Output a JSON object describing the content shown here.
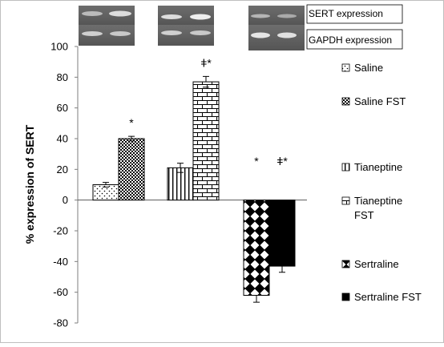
{
  "chart_data": {
    "type": "bar",
    "ylabel": "% expression of SERT",
    "ylim": [
      -80,
      100
    ],
    "yticks": [
      -80,
      -60,
      -40,
      -20,
      0,
      20,
      40,
      60,
      80,
      100
    ],
    "groups": [
      "Saline",
      "Tianeptine",
      "Sertraline"
    ],
    "series": [
      {
        "name": "Saline",
        "pattern": "dots",
        "group": 0,
        "value": 10,
        "error": 1.5
      },
      {
        "name": "Saline FST",
        "pattern": "checker",
        "group": 0,
        "value": 40,
        "error": 1.5,
        "annotation": "*"
      },
      {
        "name": "Tianeptine",
        "pattern": "vlines",
        "group": 1,
        "value": 21,
        "error": 3
      },
      {
        "name": "Tianeptine FST",
        "pattern": "bricks",
        "group": 1,
        "value": 77,
        "error": 3.5,
        "annotation": "ǂ*"
      },
      {
        "name": "Sertraline",
        "pattern": "diamonds",
        "group": 2,
        "value": -62,
        "error": 4.5,
        "annotation": "*"
      },
      {
        "name": "Sertraline FST",
        "pattern": "solid",
        "group": 2,
        "value": -43,
        "error": 4,
        "annotation": "ǂ*"
      }
    ],
    "gel_labels": {
      "top": "SERT expression",
      "bottom": "GAPDH expression"
    },
    "colors": {
      "ink": "#000000",
      "axis": "#7f7f7f",
      "frame": "#bfbfbf",
      "bg": "#ffffff"
    }
  }
}
